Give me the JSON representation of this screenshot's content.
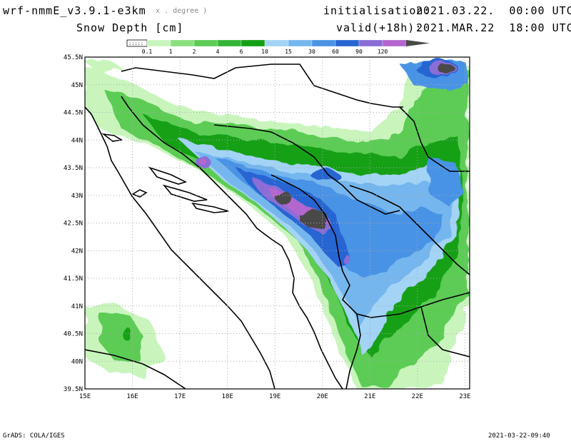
{
  "header": {
    "model": "wrf-nmmE_v3.9.1-e3km",
    "grid": "x . degree )",
    "field": "Snow Depth [cm]",
    "init_label": "initialisation:",
    "init_value": "2021.03.22.  00:00 UTC",
    "valid_label": "valid(+18h):",
    "valid_value": "2021.MAR.22  18:00 UTC"
  },
  "colorbar": {
    "first_box_label": ":::::",
    "ticks": [
      "0.1",
      "1",
      "2",
      "4",
      "6",
      "10",
      "15",
      "30",
      "60",
      "90",
      "120"
    ],
    "colors": [
      "#c9f5bd",
      "#8be07e",
      "#5ccc55",
      "#33b535",
      "#12a012",
      "#a3d3f5",
      "#75b6ee",
      "#4a93e6",
      "#2865d2",
      "#8a6dd6",
      "#b466cf",
      "#4a4a4a"
    ]
  },
  "map": {
    "lon_labels": [
      "15E",
      "16E",
      "17E",
      "18E",
      "19E",
      "20E",
      "21E",
      "22E",
      "23E"
    ],
    "lat_labels": [
      "45.5N",
      "45N",
      "44.5N",
      "44N",
      "43.5N",
      "43N",
      "42.5N",
      "42N",
      "41.5N",
      "41N",
      "40.5N",
      "40N",
      "39.5N"
    ],
    "background": "#ffffff",
    "border_color": "#000000",
    "grid_color": "#aaaaaa"
  },
  "footer": {
    "left": "GrADS: COLA/IGES",
    "right": "2021-03-22-09:40"
  }
}
